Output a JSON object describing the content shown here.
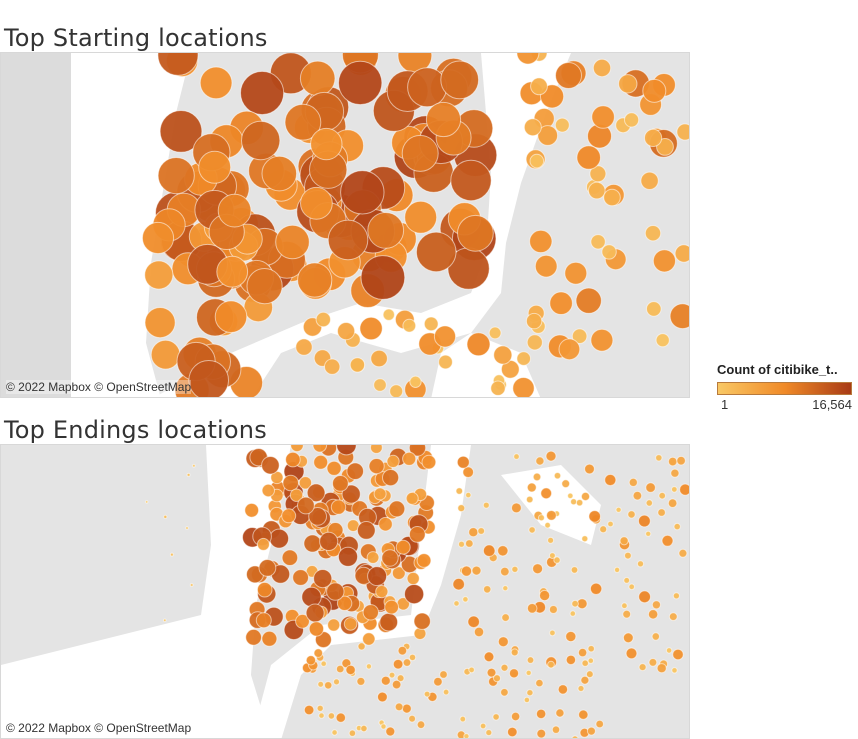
{
  "start_map": {
    "title": "Top Starting locations",
    "attribution": "© 2022 Mapbox © OpenStreetMap"
  },
  "end_map": {
    "title": "Top Endings locations",
    "attribution": "© 2022 Mapbox © OpenStreetMap"
  },
  "legend": {
    "title": "Count of citibike_t..",
    "min_label": "1",
    "max_label": "16,564",
    "min_value": 1,
    "max_value": 16564
  },
  "colors": {
    "low": "#f9c865",
    "mid": "#f08a28",
    "high": "#a83b16",
    "land": "#e4e4e4",
    "water": "#ffffff"
  }
}
